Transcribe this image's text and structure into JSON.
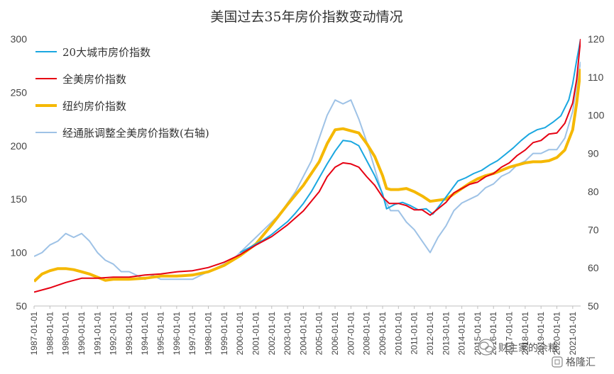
{
  "chart_data": {
    "type": "line",
    "title": "美国过去35年房价指数变动情况",
    "left_axis": {
      "min": 50,
      "max": 300,
      "ticks": [
        50,
        100,
        150,
        200,
        250,
        300
      ]
    },
    "right_axis": {
      "min": 50,
      "max": 120,
      "ticks": [
        50,
        60,
        70,
        80,
        90,
        100,
        110,
        120
      ]
    },
    "x_ticks": [
      "1987-01-01",
      "1988-01-01",
      "1989-01-01",
      "1990-01-01",
      "1991-01-01",
      "1992-01-01",
      "1993-01-01",
      "1994-01-01",
      "1995-01-01",
      "1996-01-01",
      "1997-01-01",
      "1998-01-01",
      "1999-01-01",
      "2000-01-01",
      "2001-01-01",
      "2002-01-01",
      "2003-01-01",
      "2004-01-01",
      "2005-01-01",
      "2006-01-01",
      "2007-01-01",
      "2008-01-01",
      "2009-01-01",
      "2010-01-01",
      "2011-01-01",
      "2012-01-01",
      "2013-01-01",
      "2014-01-01",
      "2015-01-01",
      "2016-01-01",
      "2017-01-01",
      "2018-01-01",
      "2019-01-01",
      "2020-01-01",
      "2021-01-01"
    ],
    "x_range": [
      "1987-01-01",
      "2021-07-01"
    ],
    "grid": false,
    "legend_position": "top-left",
    "series": [
      {
        "name": "20大城市房价指数",
        "axis": "left",
        "color": "#1aa7e0",
        "points": [
          [
            "2000-01-01",
            100
          ],
          [
            "2000-07-01",
            104
          ],
          [
            "2001-01-01",
            108
          ],
          [
            "2001-07-01",
            112
          ],
          [
            "2002-01-01",
            117
          ],
          [
            "2002-07-01",
            123
          ],
          [
            "2003-01-01",
            129
          ],
          [
            "2003-07-01",
            137
          ],
          [
            "2004-01-01",
            146
          ],
          [
            "2004-07-01",
            157
          ],
          [
            "2005-01-01",
            170
          ],
          [
            "2005-07-01",
            183
          ],
          [
            "2006-01-01",
            195
          ],
          [
            "2006-07-01",
            205
          ],
          [
            "2007-01-01",
            204
          ],
          [
            "2007-07-01",
            200
          ],
          [
            "2008-01-01",
            186
          ],
          [
            "2008-07-01",
            172
          ],
          [
            "2009-01-01",
            155
          ],
          [
            "2009-04-01",
            141
          ],
          [
            "2009-10-01",
            145
          ],
          [
            "2010-04-01",
            147
          ],
          [
            "2010-10-01",
            144
          ],
          [
            "2011-04-01",
            140
          ],
          [
            "2011-10-01",
            141
          ],
          [
            "2012-03-01",
            136
          ],
          [
            "2012-10-01",
            147
          ],
          [
            "2013-04-01",
            157
          ],
          [
            "2013-10-01",
            167
          ],
          [
            "2014-04-01",
            170
          ],
          [
            "2014-10-01",
            174
          ],
          [
            "2015-04-01",
            177
          ],
          [
            "2015-10-01",
            182
          ],
          [
            "2016-04-01",
            186
          ],
          [
            "2016-10-01",
            192
          ],
          [
            "2017-04-01",
            198
          ],
          [
            "2017-10-01",
            205
          ],
          [
            "2018-04-01",
            211
          ],
          [
            "2018-10-01",
            215
          ],
          [
            "2019-04-01",
            217
          ],
          [
            "2019-10-01",
            222
          ],
          [
            "2020-04-01",
            228
          ],
          [
            "2020-10-01",
            243
          ],
          [
            "2021-01-01",
            258
          ],
          [
            "2021-04-01",
            280
          ],
          [
            "2021-07-01",
            300
          ]
        ]
      },
      {
        "name": "全美房价指数",
        "axis": "left",
        "color": "#e60012",
        "points": [
          [
            "1987-01-01",
            63
          ],
          [
            "1988-01-01",
            67
          ],
          [
            "1989-01-01",
            72
          ],
          [
            "1990-01-01",
            76
          ],
          [
            "1991-01-01",
            76
          ],
          [
            "1992-01-01",
            77
          ],
          [
            "1993-01-01",
            77
          ],
          [
            "1994-01-01",
            79
          ],
          [
            "1995-01-01",
            80
          ],
          [
            "1996-01-01",
            82
          ],
          [
            "1997-01-01",
            83
          ],
          [
            "1998-01-01",
            86
          ],
          [
            "1999-01-01",
            91
          ],
          [
            "2000-01-01",
            98
          ],
          [
            "2001-01-01",
            107
          ],
          [
            "2002-01-01",
            115
          ],
          [
            "2003-01-01",
            126
          ],
          [
            "2004-01-01",
            139
          ],
          [
            "2005-01-01",
            157
          ],
          [
            "2005-07-01",
            171
          ],
          [
            "2006-01-01",
            180
          ],
          [
            "2006-07-01",
            184
          ],
          [
            "2007-01-01",
            183
          ],
          [
            "2007-07-01",
            180
          ],
          [
            "2008-01-01",
            171
          ],
          [
            "2008-07-01",
            163
          ],
          [
            "2009-01-01",
            152
          ],
          [
            "2009-06-01",
            146
          ],
          [
            "2010-01-01",
            146
          ],
          [
            "2010-07-01",
            144
          ],
          [
            "2011-01-01",
            140
          ],
          [
            "2011-07-01",
            140
          ],
          [
            "2012-01-01",
            135
          ],
          [
            "2012-07-01",
            141
          ],
          [
            "2013-01-01",
            147
          ],
          [
            "2013-07-01",
            156
          ],
          [
            "2014-01-01",
            160
          ],
          [
            "2014-07-01",
            164
          ],
          [
            "2015-01-01",
            166
          ],
          [
            "2015-07-01",
            171
          ],
          [
            "2016-01-01",
            174
          ],
          [
            "2016-07-01",
            180
          ],
          [
            "2017-01-01",
            184
          ],
          [
            "2017-07-01",
            191
          ],
          [
            "2018-01-01",
            196
          ],
          [
            "2018-07-01",
            203
          ],
          [
            "2019-01-01",
            205
          ],
          [
            "2019-07-01",
            211
          ],
          [
            "2020-01-01",
            212
          ],
          [
            "2020-07-01",
            221
          ],
          [
            "2021-01-01",
            240
          ],
          [
            "2021-04-01",
            262
          ],
          [
            "2021-07-01",
            300
          ]
        ]
      },
      {
        "name": "纽约房价指数",
        "axis": "left",
        "color": "#f5b800",
        "points": [
          [
            "1987-01-01",
            73
          ],
          [
            "1987-07-01",
            80
          ],
          [
            "1988-01-01",
            83
          ],
          [
            "1988-07-01",
            85
          ],
          [
            "1989-01-01",
            85
          ],
          [
            "1989-07-01",
            84
          ],
          [
            "1990-01-01",
            82
          ],
          [
            "1990-07-01",
            80
          ],
          [
            "1991-01-01",
            77
          ],
          [
            "1991-07-01",
            74
          ],
          [
            "1992-01-01",
            75
          ],
          [
            "1993-01-01",
            75
          ],
          [
            "1994-01-01",
            76
          ],
          [
            "1995-01-01",
            78
          ],
          [
            "1996-01-01",
            78
          ],
          [
            "1997-01-01",
            79
          ],
          [
            "1998-01-01",
            82
          ],
          [
            "1999-01-01",
            88
          ],
          [
            "2000-01-01",
            97
          ],
          [
            "2001-01-01",
            108
          ],
          [
            "2002-01-01",
            126
          ],
          [
            "2003-01-01",
            145
          ],
          [
            "2004-01-01",
            163
          ],
          [
            "2005-01-01",
            185
          ],
          [
            "2005-07-01",
            202
          ],
          [
            "2006-01-01",
            215
          ],
          [
            "2006-07-01",
            216
          ],
          [
            "2007-01-01",
            214
          ],
          [
            "2007-07-01",
            212
          ],
          [
            "2008-01-01",
            202
          ],
          [
            "2008-07-01",
            190
          ],
          [
            "2009-01-01",
            172
          ],
          [
            "2009-04-01",
            160
          ],
          [
            "2009-07-01",
            159
          ],
          [
            "2010-01-01",
            159
          ],
          [
            "2010-07-01",
            160
          ],
          [
            "2011-01-01",
            157
          ],
          [
            "2011-07-01",
            153
          ],
          [
            "2012-01-01",
            148
          ],
          [
            "2012-07-01",
            149
          ],
          [
            "2013-01-01",
            150
          ],
          [
            "2013-07-01",
            155
          ],
          [
            "2014-01-01",
            160
          ],
          [
            "2014-07-01",
            165
          ],
          [
            "2015-01-01",
            169
          ],
          [
            "2015-07-01",
            172
          ],
          [
            "2016-01-01",
            174
          ],
          [
            "2016-07-01",
            177
          ],
          [
            "2017-01-01",
            180
          ],
          [
            "2017-07-01",
            182
          ],
          [
            "2018-01-01",
            184
          ],
          [
            "2018-07-01",
            185
          ],
          [
            "2019-01-01",
            185
          ],
          [
            "2019-07-01",
            186
          ],
          [
            "2020-01-01",
            189
          ],
          [
            "2020-07-01",
            196
          ],
          [
            "2021-01-01",
            215
          ],
          [
            "2021-04-01",
            240
          ],
          [
            "2021-07-01",
            272
          ]
        ]
      },
      {
        "name": "经通胀调整全美房价指数(右轴)",
        "axis": "right",
        "color": "#9ec2e6",
        "points": [
          [
            "1987-01-01",
            63
          ],
          [
            "1987-07-01",
            64
          ],
          [
            "1988-01-01",
            66
          ],
          [
            "1988-07-01",
            67
          ],
          [
            "1989-01-01",
            69
          ],
          [
            "1989-07-01",
            68
          ],
          [
            "1990-01-01",
            69
          ],
          [
            "1990-07-01",
            67
          ],
          [
            "1991-01-01",
            64
          ],
          [
            "1991-07-01",
            62
          ],
          [
            "1992-01-01",
            61
          ],
          [
            "1992-07-01",
            59
          ],
          [
            "1993-01-01",
            59
          ],
          [
            "1993-07-01",
            58
          ],
          [
            "1994-01-01",
            57
          ],
          [
            "1994-07-01",
            58
          ],
          [
            "1995-01-01",
            57
          ],
          [
            "1995-07-01",
            57
          ],
          [
            "1996-01-01",
            57
          ],
          [
            "1996-07-01",
            57
          ],
          [
            "1997-01-01",
            57
          ],
          [
            "1997-07-01",
            58
          ],
          [
            "1998-01-01",
            59
          ],
          [
            "1998-07-01",
            60
          ],
          [
            "1999-01-01",
            61
          ],
          [
            "1999-07-01",
            62
          ],
          [
            "2000-01-01",
            64
          ],
          [
            "2000-07-01",
            66
          ],
          [
            "2001-01-01",
            68
          ],
          [
            "2001-07-01",
            70
          ],
          [
            "2002-01-01",
            72
          ],
          [
            "2002-07-01",
            74
          ],
          [
            "2003-01-01",
            77
          ],
          [
            "2003-07-01",
            80
          ],
          [
            "2004-01-01",
            84
          ],
          [
            "2004-07-01",
            88
          ],
          [
            "2005-01-01",
            94
          ],
          [
            "2005-07-01",
            100
          ],
          [
            "2006-01-01",
            104
          ],
          [
            "2006-07-01",
            103
          ],
          [
            "2007-01-01",
            104
          ],
          [
            "2007-07-01",
            99
          ],
          [
            "2008-01-01",
            93
          ],
          [
            "2008-07-01",
            86
          ],
          [
            "2009-01-01",
            79
          ],
          [
            "2009-07-01",
            75
          ],
          [
            "2010-01-01",
            75
          ],
          [
            "2010-07-01",
            72
          ],
          [
            "2011-01-01",
            70
          ],
          [
            "2011-07-01",
            67
          ],
          [
            "2012-01-01",
            64
          ],
          [
            "2012-07-01",
            68
          ],
          [
            "2013-01-01",
            71
          ],
          [
            "2013-07-01",
            75
          ],
          [
            "2014-01-01",
            77
          ],
          [
            "2014-07-01",
            78
          ],
          [
            "2015-01-01",
            79
          ],
          [
            "2015-07-01",
            81
          ],
          [
            "2016-01-01",
            82
          ],
          [
            "2016-07-01",
            84
          ],
          [
            "2017-01-01",
            85
          ],
          [
            "2017-07-01",
            87
          ],
          [
            "2018-01-01",
            88
          ],
          [
            "2018-07-01",
            90
          ],
          [
            "2019-01-01",
            90
          ],
          [
            "2019-07-01",
            91
          ],
          [
            "2020-01-01",
            91
          ],
          [
            "2020-07-01",
            94
          ],
          [
            "2021-01-01",
            101
          ],
          [
            "2021-04-01",
            108
          ],
          [
            "2021-07-01",
            114
          ]
        ]
      }
    ]
  },
  "watermark": {
    "wechat_icon": "wechat-icon",
    "text": "财主家的余粮",
    "brand_icon": "brand-logo-icon",
    "brand_text": "格隆汇"
  }
}
